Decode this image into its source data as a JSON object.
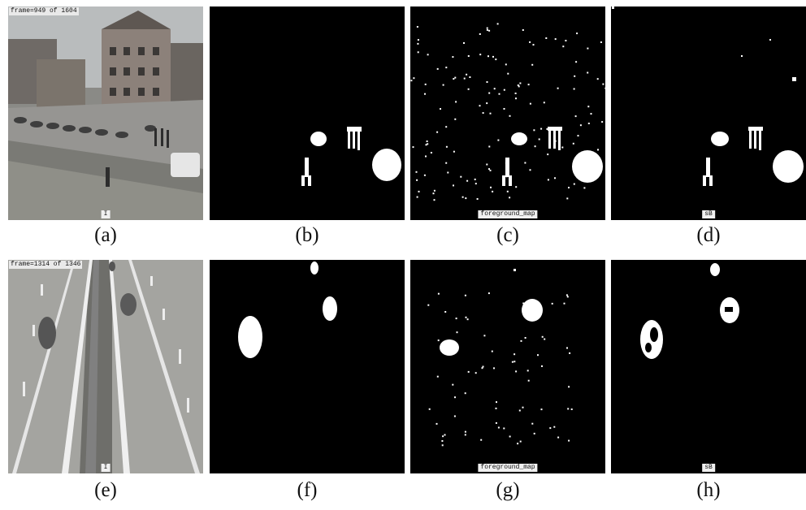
{
  "top_row": {
    "frame_label": "frame=949 of 1604",
    "tags": {
      "a": "I",
      "c": "foreground_map",
      "d": "sB"
    },
    "captions": {
      "a": "(a)",
      "b": "(b)",
      "c": "(c)",
      "d": "(d)"
    }
  },
  "bottom_row": {
    "frame_label": "frame=1314 of 1346",
    "tags": {
      "e": "I",
      "g": "foreground_map",
      "h": "sB"
    },
    "captions": {
      "e": "(e)",
      "f": "(f)",
      "g": "(g)",
      "h": "(h)"
    }
  },
  "colors": {
    "mask": "#ffffff",
    "background": "#000000",
    "page": "#ffffff"
  }
}
